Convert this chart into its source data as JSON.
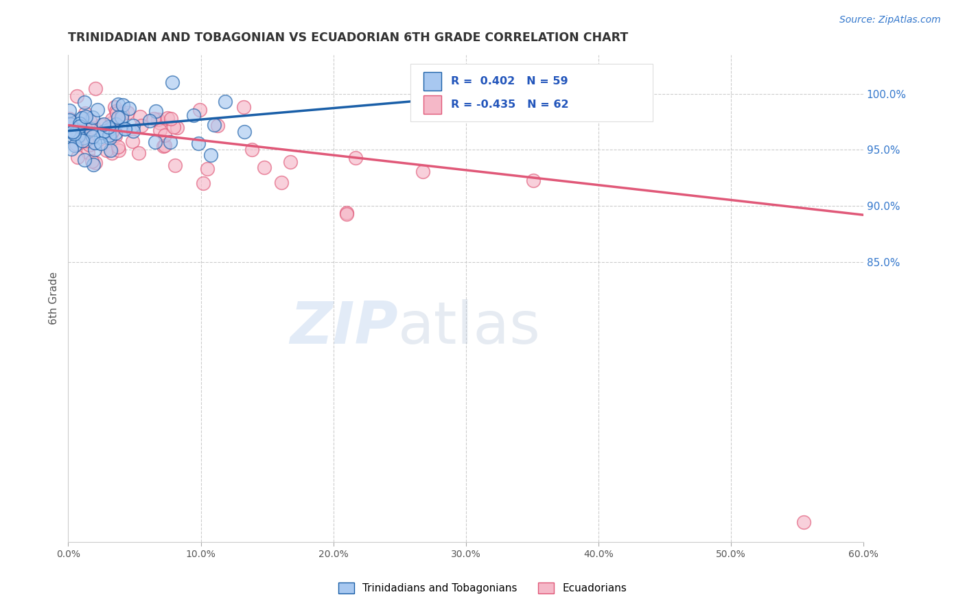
{
  "title": "TRINIDADIAN AND TOBAGONIAN VS ECUADORIAN 6TH GRADE CORRELATION CHART",
  "source": "Source: ZipAtlas.com",
  "ylabel": "6th Grade",
  "ytick_labels": [
    "100.0%",
    "95.0%",
    "90.0%",
    "85.0%"
  ],
  "ytick_values": [
    1.0,
    0.95,
    0.9,
    0.85
  ],
  "xlim": [
    0.0,
    0.6
  ],
  "ylim": [
    0.6,
    1.035
  ],
  "legend_label1": "Trinidadians and Tobagonians",
  "legend_label2": "Ecuadorians",
  "R1": 0.402,
  "N1": 59,
  "R2": -0.435,
  "N2": 62,
  "color_blue": "#A8C8F0",
  "color_pink": "#F5B8C8",
  "line_blue": "#1A5FA8",
  "line_pink": "#E05878",
  "watermark_zip": "ZIP",
  "watermark_atlas": "atlas",
  "blue_line_x": [
    0.0,
    0.345
  ],
  "blue_line_y": [
    0.967,
    1.002
  ],
  "pink_line_x": [
    0.0,
    0.6
  ],
  "pink_line_y": [
    0.972,
    0.892
  ]
}
